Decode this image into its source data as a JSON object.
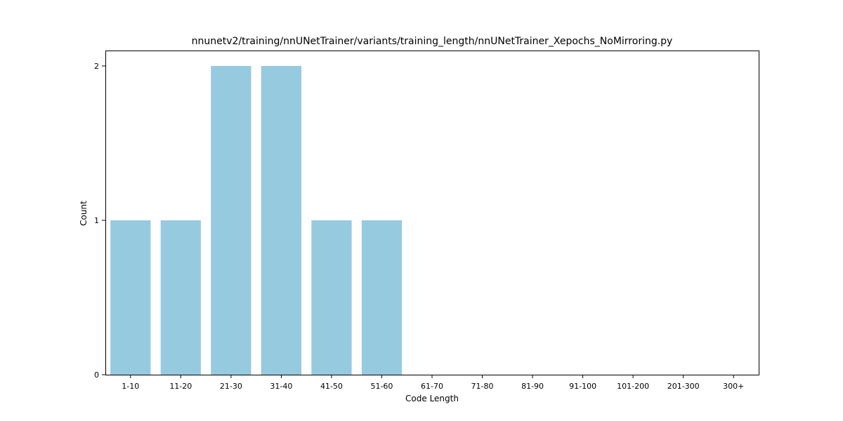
{
  "chart_data": {
    "type": "bar",
    "title": "nnunetv2/training/nnUNetTrainer/variants/training_length/nnUNetTrainer_Xepochs_NoMirroring.py",
    "xlabel": "Code Length",
    "ylabel": "Count",
    "categories": [
      "1-10",
      "11-20",
      "21-30",
      "31-40",
      "41-50",
      "51-60",
      "61-70",
      "71-80",
      "81-90",
      "91-100",
      "101-200",
      "201-300",
      "300+"
    ],
    "values": [
      1,
      1,
      2,
      2,
      1,
      1,
      0,
      0,
      0,
      0,
      0,
      0,
      0
    ],
    "ylim": [
      0,
      2.1
    ],
    "yticks": [
      0,
      1,
      2
    ],
    "grid": false,
    "legend": "none",
    "bar_color": "#96cadf"
  }
}
